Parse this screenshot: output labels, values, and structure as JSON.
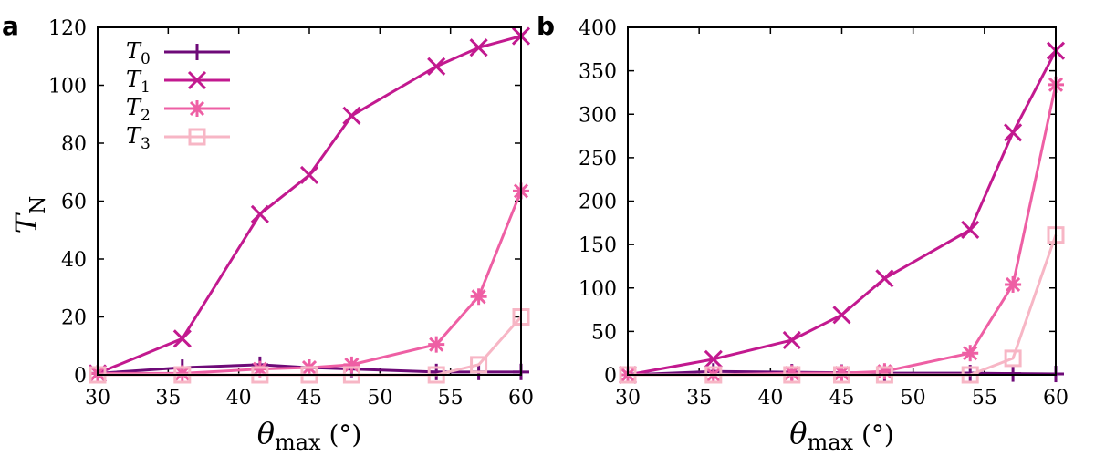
{
  "colors": {
    "T0": "#6e0a78",
    "T1": "#c2198f",
    "T2": "#ee5fa4",
    "T3": "#f7b6c5"
  },
  "markers": {
    "T0": "plus",
    "T1": "cross",
    "T2": "star",
    "T3": "square"
  },
  "legend": [
    {
      "key": "T0",
      "base": "T",
      "sub": "0"
    },
    {
      "key": "T1",
      "base": "T",
      "sub": "1"
    },
    {
      "key": "T2",
      "base": "T",
      "sub": "2"
    },
    {
      "key": "T3",
      "base": "T",
      "sub": "3"
    }
  ],
  "chart_data": [
    {
      "type": "line",
      "panel_label": "a",
      "ylabel": {
        "base": "T",
        "sub": "N"
      },
      "xlabel": {
        "symbol": "θ",
        "sub": "max",
        "unit": " (°)"
      },
      "xlim": [
        30,
        60
      ],
      "ylim": [
        0,
        120
      ],
      "xticks": [
        30,
        35,
        40,
        45,
        50,
        55,
        60
      ],
      "yticks": [
        0,
        20,
        40,
        60,
        80,
        100,
        120
      ],
      "legend_position": "top-left",
      "x": [
        30,
        36,
        41.5,
        45,
        48,
        54,
        57,
        60
      ],
      "series": [
        {
          "key": "T0",
          "name": "T0",
          "values": [
            0.5,
            2.5,
            3.5,
            2.5,
            2,
            1,
            1,
            1
          ]
        },
        {
          "key": "T1",
          "name": "T1",
          "values": [
            0.5,
            12.5,
            55.5,
            69,
            89.5,
            106.5,
            113,
            117
          ]
        },
        {
          "key": "T2",
          "name": "T2",
          "values": [
            0.5,
            0.5,
            2,
            2.5,
            3.5,
            10.5,
            27,
            63.5
          ]
        },
        {
          "key": "T3",
          "name": "T3",
          "values": [
            0,
            0,
            0,
            0,
            0,
            0,
            3.5,
            20
          ]
        }
      ]
    },
    {
      "type": "line",
      "panel_label": "b",
      "xlabel": {
        "symbol": "θ",
        "sub": "max",
        "unit": " (°)"
      },
      "xlim": [
        30,
        60
      ],
      "ylim": [
        0,
        400
      ],
      "xticks": [
        30,
        35,
        40,
        45,
        50,
        55,
        60
      ],
      "yticks": [
        0,
        50,
        100,
        150,
        200,
        250,
        300,
        350,
        400
      ],
      "x": [
        30,
        36,
        41.5,
        45,
        48,
        54,
        57,
        60
      ],
      "series": [
        {
          "key": "T0",
          "name": "T0",
          "values": [
            0,
            4,
            3,
            2.5,
            2,
            2,
            1.5,
            1
          ]
        },
        {
          "key": "T1",
          "name": "T1",
          "values": [
            0,
            18,
            40,
            69,
            111,
            167,
            279,
            373
          ]
        },
        {
          "key": "T2",
          "name": "T2",
          "values": [
            0,
            0,
            2,
            2,
            4,
            25,
            104,
            334
          ]
        },
        {
          "key": "T3",
          "name": "T3",
          "values": [
            0,
            0,
            0,
            0,
            0,
            0,
            19,
            161
          ]
        }
      ]
    }
  ]
}
